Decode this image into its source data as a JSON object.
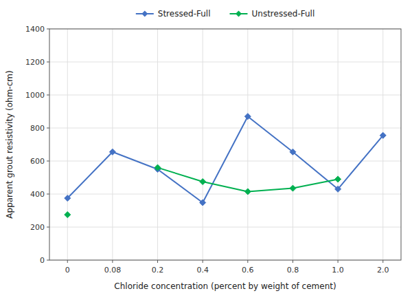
{
  "chart_data": {
    "type": "line",
    "xlabel": "Chloride concentration (percent by weight of cement)",
    "ylabel": "Apparent grout resistivity (ohm-cm)",
    "categories": [
      "0",
      "0.08",
      "0.2",
      "0.4",
      "0.6",
      "0.8",
      "1.0",
      "2.0"
    ],
    "series": [
      {
        "name": "Stressed-Full",
        "color": "#4472C4",
        "values": [
          375,
          655,
          550,
          348,
          870,
          655,
          430,
          755
        ]
      },
      {
        "name": "Unstressed-Full",
        "color": "#00B050",
        "values": [
          275,
          null,
          560,
          475,
          415,
          435,
          490,
          null
        ]
      }
    ],
    "ylim": [
      0,
      1400
    ],
    "yticks": [
      0,
      200,
      400,
      600,
      800,
      1000,
      1200,
      1400
    ],
    "grid": true,
    "legend": "top",
    "marker": "diamond"
  }
}
